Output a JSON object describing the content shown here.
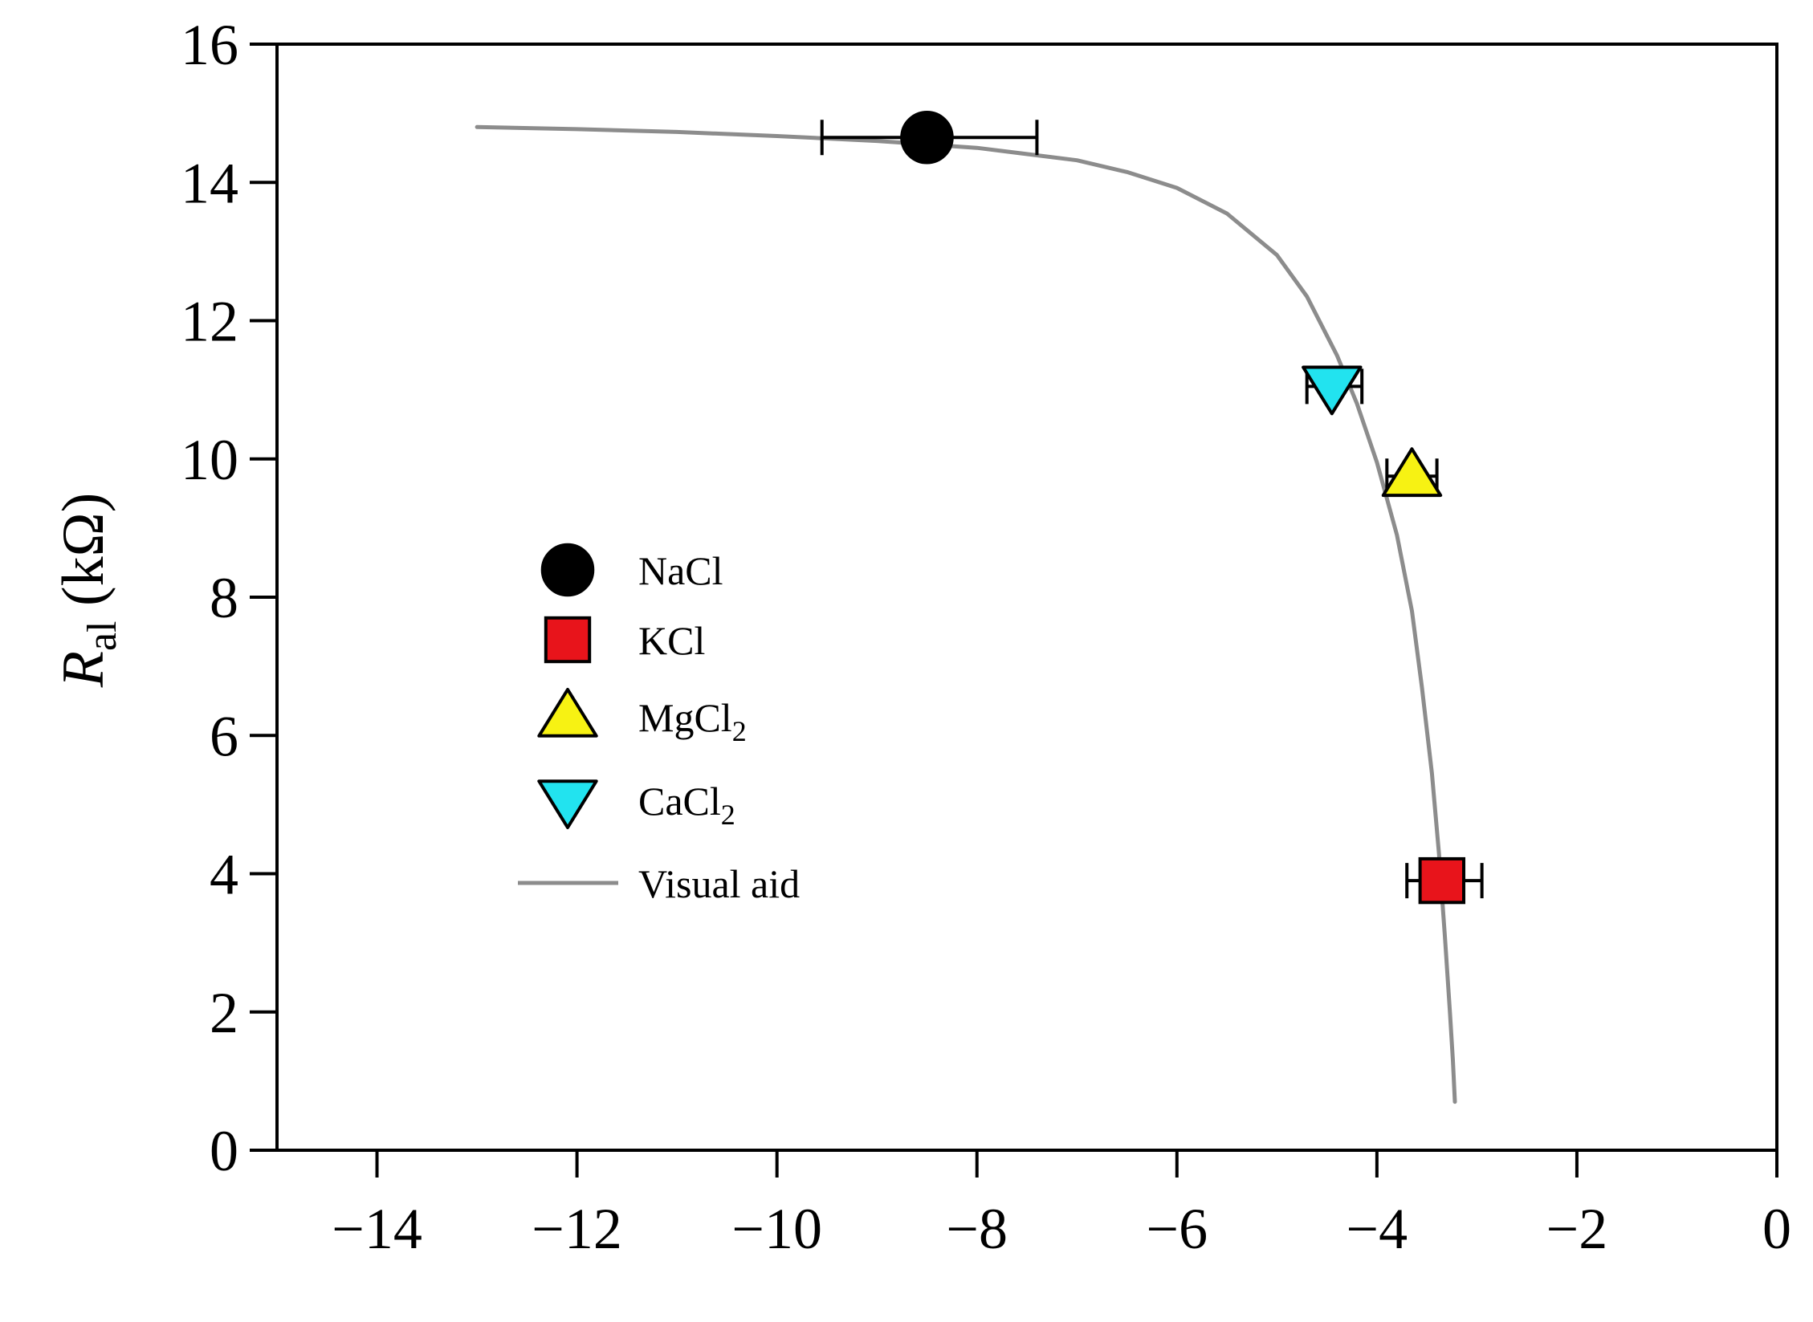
{
  "chart_data": {
    "type": "scatter",
    "title": "",
    "xlabel": "",
    "ylabel": {
      "symbol": "R",
      "subscript": "al",
      "unit": " (kΩ)"
    },
    "xlim": [
      -15,
      0
    ],
    "ylim": [
      0,
      16
    ],
    "x_ticks": [
      -14,
      -12,
      -10,
      -8,
      -6,
      -4,
      -2,
      0
    ],
    "x_tick_labels": [
      "−14",
      "−12",
      "−10",
      "−8",
      "−6",
      "−4",
      "−2",
      "0"
    ],
    "y_ticks": [
      0,
      2,
      4,
      6,
      8,
      10,
      12,
      14,
      16
    ],
    "y_tick_labels": [
      "0",
      "2",
      "4",
      "6",
      "8",
      "10",
      "12",
      "14",
      "16"
    ],
    "grid": false,
    "legend_position": "center-left",
    "series": [
      {
        "name": "NaCl",
        "label_base": "NaCl",
        "label_sub": "",
        "marker": "circle",
        "color": "#000000",
        "points": [
          {
            "x": -8.5,
            "y": 14.65,
            "xerr_low": -9.55,
            "xerr_high": -7.4
          }
        ]
      },
      {
        "name": "KCl",
        "label_base": "KCl",
        "label_sub": "",
        "marker": "square",
        "color": "#e8141b",
        "points": [
          {
            "x": -3.35,
            "y": 3.9,
            "xerr_low": -3.7,
            "xerr_high": -2.95
          }
        ]
      },
      {
        "name": "MgCl2",
        "label_base": "MgCl",
        "label_sub": "2",
        "marker": "triangle-up",
        "color": "#f7f213",
        "points": [
          {
            "x": -3.65,
            "y": 9.75,
            "xerr_low": -3.9,
            "xerr_high": -3.4
          }
        ]
      },
      {
        "name": "CaCl2",
        "label_base": "CaCl",
        "label_sub": "2",
        "marker": "triangle-down",
        "color": "#22e3ef",
        "points": [
          {
            "x": -4.45,
            "y": 11.05,
            "xerr_low": -4.7,
            "xerr_high": -4.15
          }
        ]
      }
    ],
    "curve": {
      "name": "Visual aid",
      "color": "#8c8c8c",
      "points": [
        [
          -13.0,
          14.8
        ],
        [
          -12.0,
          14.77
        ],
        [
          -11.0,
          14.73
        ],
        [
          -10.0,
          14.67
        ],
        [
          -9.0,
          14.6
        ],
        [
          -8.0,
          14.5
        ],
        [
          -7.0,
          14.32
        ],
        [
          -6.5,
          14.15
        ],
        [
          -6.0,
          13.92
        ],
        [
          -5.5,
          13.55
        ],
        [
          -5.0,
          12.95
        ],
        [
          -4.7,
          12.35
        ],
        [
          -4.4,
          11.5
        ],
        [
          -4.2,
          10.8
        ],
        [
          -4.0,
          9.95
        ],
        [
          -3.8,
          8.9
        ],
        [
          -3.65,
          7.8
        ],
        [
          -3.55,
          6.7
        ],
        [
          -3.45,
          5.45
        ],
        [
          -3.38,
          4.3
        ],
        [
          -3.32,
          3.1
        ],
        [
          -3.27,
          2.0
        ],
        [
          -3.24,
          1.3
        ],
        [
          -3.22,
          0.7
        ]
      ]
    }
  }
}
